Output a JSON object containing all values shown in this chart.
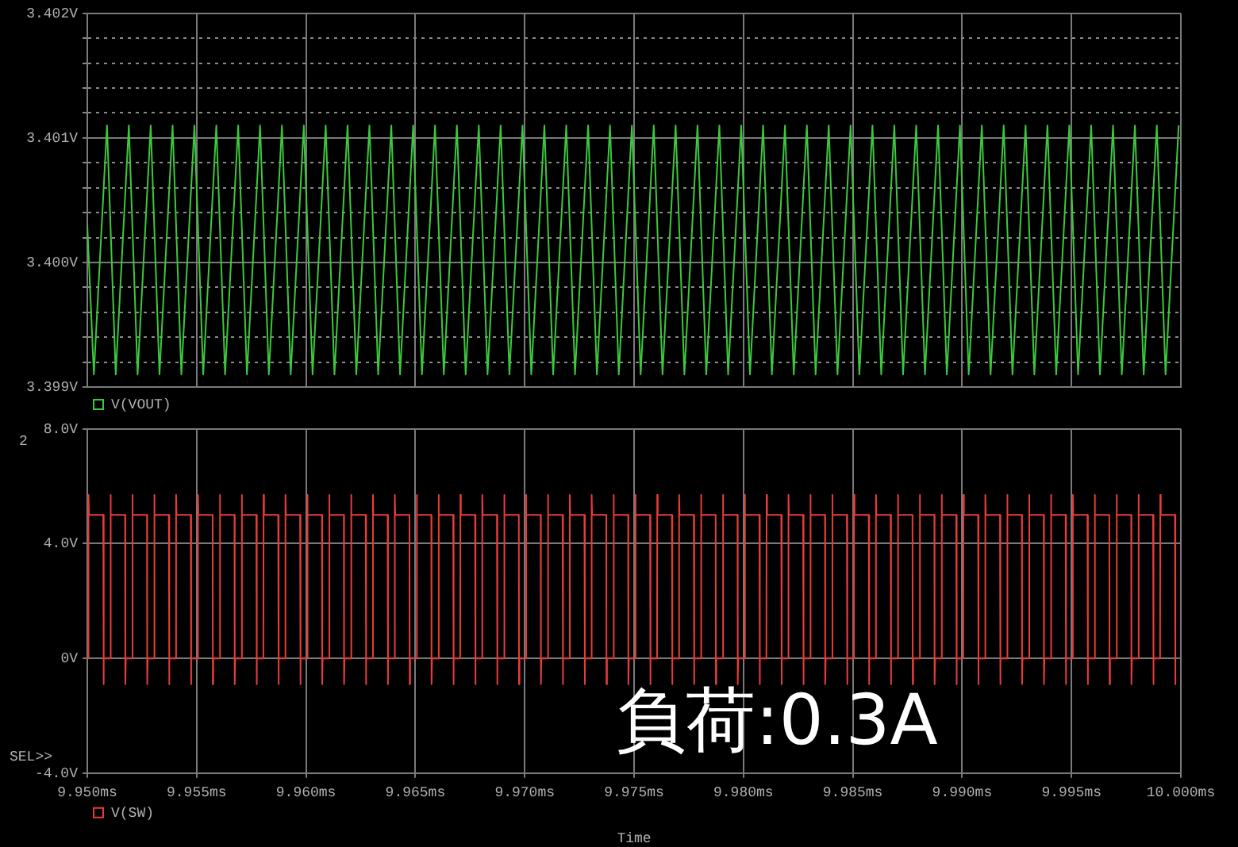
{
  "chart_data": [
    {
      "type": "line",
      "legend": "bottom left",
      "grid": true,
      "tick_labels": "y",
      "xlim": [
        9.95,
        10.0
      ],
      "xticks": [
        9.95,
        9.955,
        9.96,
        9.965,
        9.97,
        9.975,
        9.98,
        9.985,
        9.99,
        9.995,
        10.0
      ],
      "ylim": [
        3.399,
        3.402
      ],
      "yticks": [
        {
          "value": 3.399,
          "label": "3.399V"
        },
        {
          "value": 3.3992,
          "label": null
        },
        {
          "value": 3.3994,
          "label": null
        },
        {
          "value": 3.3996,
          "label": null
        },
        {
          "value": 3.3998,
          "label": null
        },
        {
          "value": 3.4,
          "label": "3.400V"
        },
        {
          "value": 3.4002,
          "label": null
        },
        {
          "value": 3.4004,
          "label": null
        },
        {
          "value": 3.4006,
          "label": null
        },
        {
          "value": 3.4008,
          "label": null
        },
        {
          "value": 3.401,
          "label": "3.401V"
        },
        {
          "value": 3.4012,
          "label": null
        },
        {
          "value": 3.4014,
          "label": null
        },
        {
          "value": 3.4016,
          "label": null
        },
        {
          "value": 3.4018,
          "label": null
        },
        {
          "value": 3.402,
          "label": "3.402V"
        }
      ],
      "x": [
        9.95,
        9.9503,
        9.9509,
        9.9513,
        9.9519,
        9.9523,
        9.9529,
        9.9533,
        9.9539,
        9.9543,
        9.9549,
        9.9553,
        9.9559,
        9.9563,
        9.9569,
        9.9573,
        9.9579,
        9.9583,
        9.9589,
        9.9593,
        9.9599,
        9.9603,
        9.9609,
        9.9613,
        9.9619,
        9.9623,
        9.9629,
        9.9633,
        9.9639,
        9.9643,
        9.9649,
        9.9653,
        9.9659,
        9.9663,
        9.9669,
        9.9673,
        9.9679,
        9.9683,
        9.9689,
        9.9693,
        9.9699,
        9.9703,
        9.9709,
        9.9713,
        9.9719,
        9.9723,
        9.9729,
        9.9733,
        9.9739,
        9.9743,
        9.9749,
        9.9753,
        9.9759,
        9.9763,
        9.9769,
        9.9773,
        9.9779,
        9.9783,
        9.9789,
        9.9793,
        9.9799,
        9.9803,
        9.9809,
        9.9813,
        9.9819,
        9.9823,
        9.9829,
        9.9833,
        9.9839,
        9.9843,
        9.9849,
        9.9853,
        9.9859,
        9.9863,
        9.9869,
        9.9873,
        9.9879,
        9.9883,
        9.9889,
        9.9893,
        9.9899,
        9.9903,
        9.9909,
        9.9913,
        9.9919,
        9.9923,
        9.9929,
        9.9933,
        9.9939,
        9.9943,
        9.9949,
        9.9953,
        9.9959,
        9.9963,
        9.9969,
        9.9973,
        9.9979,
        9.9983,
        9.9989,
        9.9993,
        9.9999
      ],
      "series": [
        {
          "name": "V(VOUT)",
          "color": "#3cc83c",
          "values": [
            3.4003,
            3.3991,
            3.4011,
            3.3991,
            3.4011,
            3.3991,
            3.4011,
            3.3991,
            3.4011,
            3.3991,
            3.4011,
            3.3991,
            3.4011,
            3.3991,
            3.4011,
            3.3991,
            3.4011,
            3.3991,
            3.4011,
            3.3991,
            3.4011,
            3.3991,
            3.4011,
            3.3991,
            3.4011,
            3.3991,
            3.4011,
            3.3991,
            3.4011,
            3.3991,
            3.4011,
            3.3991,
            3.4011,
            3.3991,
            3.4011,
            3.3991,
            3.4011,
            3.3991,
            3.4011,
            3.3991,
            3.4011,
            3.3991,
            3.4011,
            3.3991,
            3.4011,
            3.3991,
            3.4011,
            3.3991,
            3.4011,
            3.3991,
            3.4011,
            3.3991,
            3.4011,
            3.3991,
            3.4011,
            3.3991,
            3.4011,
            3.3991,
            3.4011,
            3.3991,
            3.4011,
            3.3991,
            3.4011,
            3.3991,
            3.4011,
            3.3991,
            3.4011,
            3.3991,
            3.4011,
            3.3991,
            3.4011,
            3.3991,
            3.4011,
            3.3991,
            3.4011,
            3.3991,
            3.4011,
            3.3991,
            3.4011,
            3.3991,
            3.4011,
            3.3991,
            3.4011,
            3.3991,
            3.4011,
            3.3991,
            3.4011,
            3.3991,
            3.4011,
            3.3991,
            3.4011,
            3.3991,
            3.4011,
            3.3991,
            3.4011,
            3.3991,
            3.4011,
            3.3991,
            3.4011,
            3.3991,
            3.4011
          ]
        }
      ]
    },
    {
      "type": "line",
      "legend": "bottom left",
      "grid": true,
      "xlabel": "Time",
      "annotations": [
        "2",
        "SEL>>",
        "負荷:0.3A"
      ],
      "xlim": [
        9.95,
        10.0
      ],
      "xticks": [
        {
          "value": 9.95,
          "label": "9.950ms"
        },
        {
          "value": 9.955,
          "label": "9.955ms"
        },
        {
          "value": 9.96,
          "label": "9.960ms"
        },
        {
          "value": 9.965,
          "label": "9.965ms"
        },
        {
          "value": 9.97,
          "label": "9.970ms"
        },
        {
          "value": 9.975,
          "label": "9.975ms"
        },
        {
          "value": 9.98,
          "label": "9.980ms"
        },
        {
          "value": 9.985,
          "label": "9.985ms"
        },
        {
          "value": 9.99,
          "label": "9.990ms"
        },
        {
          "value": 9.995,
          "label": "9.995ms"
        },
        {
          "value": 10.0,
          "label": "10.000ms"
        }
      ],
      "ylim": [
        -4,
        8
      ],
      "yticks": [
        {
          "value": -4,
          "label": "-4.0V"
        },
        {
          "value": 0,
          "label": "0V"
        },
        {
          "value": 4,
          "label": "4.0V"
        },
        {
          "value": 8,
          "label": "8.0V"
        }
      ],
      "x": [
        9.95,
        9.95005,
        9.95006,
        9.95008,
        9.95073,
        9.95074,
        9.95076,
        9.95105,
        9.95106,
        9.95108,
        9.95173,
        9.95174,
        9.95176,
        9.95205,
        9.95206,
        9.95208,
        9.95273,
        9.95274,
        9.95276,
        9.95305,
        9.95306,
        9.95308,
        9.95373,
        9.95374,
        9.95376,
        9.95405,
        9.95406,
        9.95408,
        9.95473,
        9.95474,
        9.95476,
        9.95505,
        9.95506,
        9.95508,
        9.95573,
        9.95574,
        9.95576,
        9.95605,
        9.95606,
        9.95608,
        9.95673,
        9.95674,
        9.95676,
        9.95705,
        9.95706,
        9.95708,
        9.95773,
        9.95774,
        9.95776,
        9.95805,
        9.95806,
        9.95808,
        9.95873,
        9.95874,
        9.95876,
        9.95905,
        9.95906,
        9.95908,
        9.95973,
        9.95974,
        9.95976,
        9.96005,
        9.96006,
        9.96008,
        9.96073,
        9.96074,
        9.96076,
        9.96105,
        9.96106,
        9.96108,
        9.96173,
        9.96174,
        9.96176,
        9.96205,
        9.96206,
        9.96208,
        9.96273,
        9.96274,
        9.96276,
        9.96305,
        9.96306,
        9.96308,
        9.96373,
        9.96374,
        9.96376,
        9.96405,
        9.96406,
        9.96408,
        9.96473,
        9.96474,
        9.96476,
        9.96505,
        9.96506,
        9.96508,
        9.96573,
        9.96574,
        9.96576,
        9.96605,
        9.96606,
        9.96608,
        9.96673,
        9.96674,
        9.96676,
        9.96705,
        9.96706,
        9.96708,
        9.96773,
        9.96774,
        9.96776,
        9.96805,
        9.96806,
        9.96808,
        9.96873,
        9.96874,
        9.96876,
        9.96905,
        9.96906,
        9.96908,
        9.96973,
        9.96974,
        9.96976,
        9.97005,
        9.97006,
        9.97008,
        9.97073,
        9.97074,
        9.97076,
        9.97105,
        9.97106,
        9.97108,
        9.97173,
        9.97174,
        9.97176,
        9.97205,
        9.97206,
        9.97208,
        9.97273,
        9.97274,
        9.97276,
        9.97305,
        9.97306,
        9.97308,
        9.97373,
        9.97374,
        9.97376,
        9.97405,
        9.97406,
        9.97408,
        9.97473,
        9.97474,
        9.97476,
        9.97505,
        9.97506,
        9.97508,
        9.97573,
        9.97574,
        9.97576,
        9.97605,
        9.97606,
        9.97608,
        9.97673,
        9.97674,
        9.97676,
        9.97705,
        9.97706,
        9.97708,
        9.97773,
        9.97774,
        9.97776,
        9.97805,
        9.97806,
        9.97808,
        9.97873,
        9.97874,
        9.97876,
        9.97905,
        9.97906,
        9.97908,
        9.97973,
        9.97974,
        9.97976,
        9.98005,
        9.98006,
        9.98008,
        9.98073,
        9.98074,
        9.98076,
        9.98105,
        9.98106,
        9.98108,
        9.98173,
        9.98174,
        9.98176,
        9.98205,
        9.98206,
        9.98208,
        9.98273,
        9.98274,
        9.98276,
        9.98305,
        9.98306,
        9.98308,
        9.98373,
        9.98374,
        9.98376,
        9.98405,
        9.98406,
        9.98408,
        9.98473,
        9.98474,
        9.98476,
        9.98505,
        9.98506,
        9.98508,
        9.98573,
        9.98574,
        9.98576,
        9.98605,
        9.98606,
        9.98608,
        9.98673,
        9.98674,
        9.98676,
        9.98705,
        9.98706,
        9.98708,
        9.98773,
        9.98774,
        9.98776,
        9.98805,
        9.98806,
        9.98808,
        9.98873,
        9.98874,
        9.98876,
        9.98905,
        9.98906,
        9.98908,
        9.98973,
        9.98974,
        9.98976,
        9.99005,
        9.99006,
        9.99008,
        9.99073,
        9.99074,
        9.99076,
        9.99105,
        9.99106,
        9.99108,
        9.99173,
        9.99174,
        9.99176,
        9.99205,
        9.99206,
        9.99208,
        9.99273,
        9.99274,
        9.99276,
        9.99305,
        9.99306,
        9.99308,
        9.99373,
        9.99374,
        9.99376,
        9.99405,
        9.99406,
        9.99408,
        9.99473,
        9.99474,
        9.99476,
        9.99505,
        9.99506,
        9.99508,
        9.99573,
        9.99574,
        9.99576,
        9.99605,
        9.99606,
        9.99608,
        9.99673,
        9.99674,
        9.99676,
        9.99705,
        9.99706,
        9.99708,
        9.99773,
        9.99774,
        9.99776,
        9.99805,
        9.99806,
        9.99808,
        9.99873,
        9.99874,
        9.99876,
        9.99905,
        9.99906,
        9.99908,
        9.99973,
        9.99974,
        9.99976
      ],
      "series": [
        {
          "name": "V(SW)",
          "color": "#e83c3c",
          "values": [
            0,
            0,
            5.7,
            5,
            5,
            -0.9,
            0,
            0,
            5.7,
            5,
            5,
            -0.9,
            0,
            0,
            5.7,
            5,
            5,
            -0.9,
            0,
            0,
            5.7,
            5,
            5,
            -0.9,
            0,
            0,
            5.7,
            5,
            5,
            -0.9,
            0,
            0,
            5.7,
            5,
            5,
            -0.9,
            0,
            0,
            5.7,
            5,
            5,
            -0.9,
            0,
            0,
            5.7,
            5,
            5,
            -0.9,
            0,
            0,
            5.7,
            5,
            5,
            -0.9,
            0,
            0,
            5.7,
            5,
            5,
            -0.9,
            0,
            0,
            5.7,
            5,
            5,
            -0.9,
            0,
            0,
            5.7,
            5,
            5,
            -0.9,
            0,
            0,
            5.7,
            5,
            5,
            -0.9,
            0,
            0,
            5.7,
            5,
            5,
            -0.9,
            0,
            0,
            5.7,
            5,
            5,
            -0.9,
            0,
            0,
            5.7,
            5,
            5,
            -0.9,
            0,
            0,
            5.7,
            5,
            5,
            -0.9,
            0,
            0,
            5.7,
            5,
            5,
            -0.9,
            0,
            0,
            5.7,
            5,
            5,
            -0.9,
            0,
            0,
            5.7,
            5,
            5,
            -0.9,
            0,
            0,
            5.7,
            5,
            5,
            -0.9,
            0,
            0,
            5.7,
            5,
            5,
            -0.9,
            0,
            0,
            5.7,
            5,
            5,
            -0.9,
            0,
            0,
            5.7,
            5,
            5,
            -0.9,
            0,
            0,
            5.7,
            5,
            5,
            -0.9,
            0,
            0,
            5.7,
            5,
            5,
            -0.9,
            0,
            0,
            5.7,
            5,
            5,
            -0.9,
            0,
            0,
            5.7,
            5,
            5,
            -0.9,
            0,
            0,
            5.7,
            5,
            5,
            -0.9,
            0,
            0,
            5.7,
            5,
            5,
            -0.9,
            0,
            0,
            5.7,
            5,
            5,
            -0.9,
            0,
            0,
            5.7,
            5,
            5,
            -0.9,
            0,
            0,
            5.7,
            5,
            5,
            -0.9,
            0,
            0,
            5.7,
            5,
            5,
            -0.9,
            0,
            0,
            5.7,
            5,
            5,
            -0.9,
            0,
            0,
            5.7,
            5,
            5,
            -0.9,
            0,
            0,
            5.7,
            5,
            5,
            -0.9,
            0,
            0,
            5.7,
            5,
            5,
            -0.9,
            0,
            0,
            5.7,
            5,
            5,
            -0.9,
            0,
            0,
            5.7,
            5,
            5,
            -0.9,
            0,
            0,
            5.7,
            5,
            5,
            -0.9,
            0,
            0,
            5.7,
            5,
            5,
            -0.9,
            0,
            0,
            5.7,
            5,
            5,
            -0.9,
            0,
            0,
            5.7,
            5,
            5,
            -0.9,
            0,
            0,
            5.7,
            5,
            5,
            -0.9,
            0,
            0,
            5.7,
            5,
            5,
            -0.9,
            0,
            0,
            5.7,
            5,
            5,
            -0.9,
            0,
            0,
            5.7,
            5,
            5,
            -0.9,
            0,
            0,
            5.7,
            5,
            5,
            -0.9,
            0,
            0,
            5.7,
            5,
            5,
            -0.9,
            0
          ]
        }
      ]
    }
  ]
}
